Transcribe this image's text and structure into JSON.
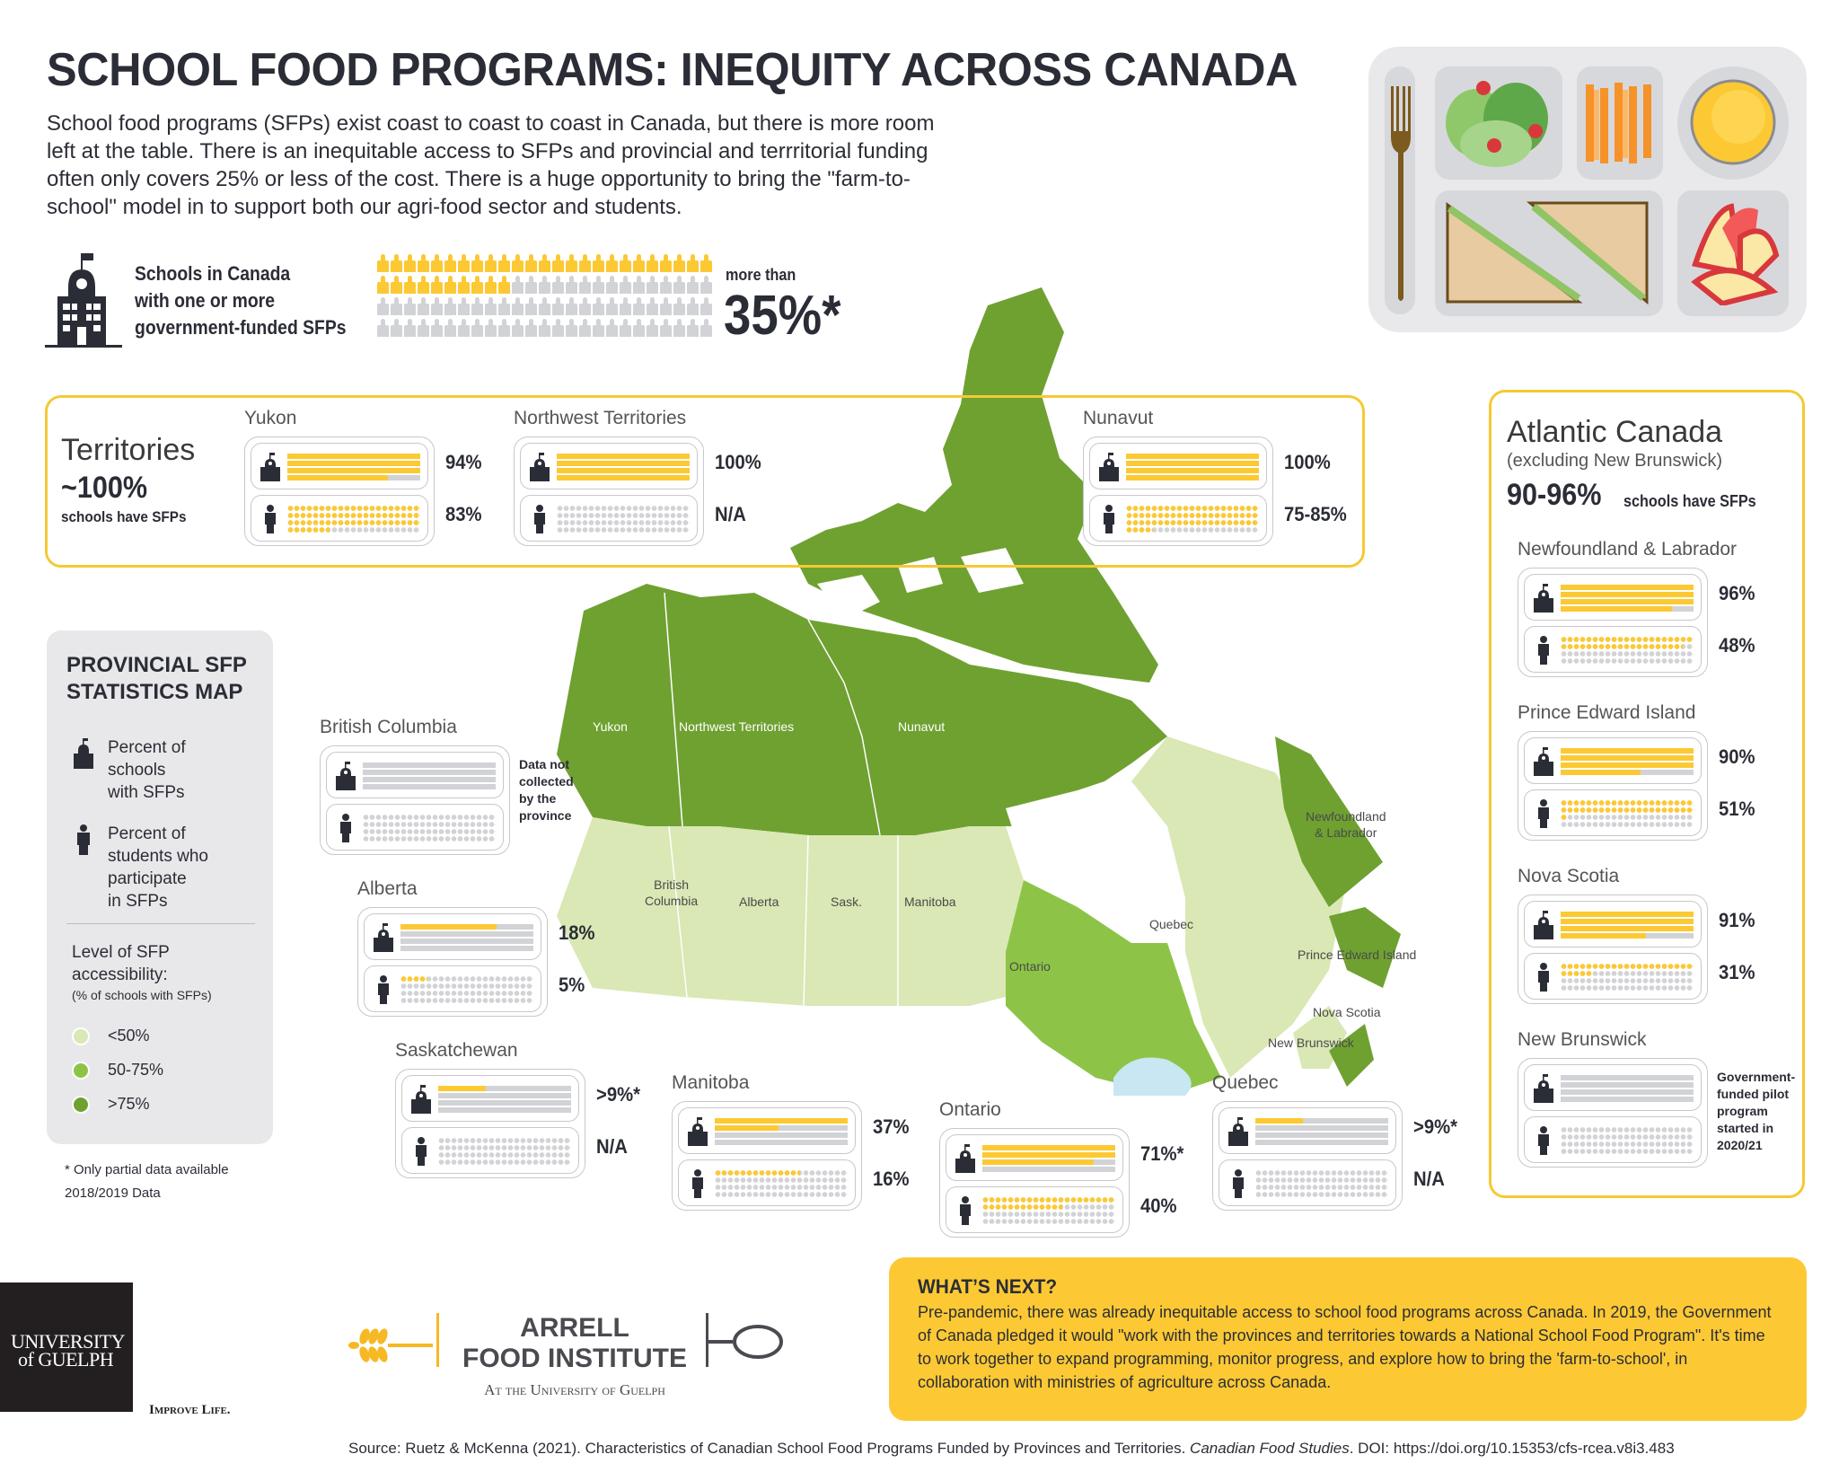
{
  "header": {
    "title": "SCHOOL FOOD PROGRAMS: INEQUITY ACROSS CANADA",
    "intro": "School food programs (SFPs) exist coast to coast to coast in Canada, but there is more room left at the table. There is an inequitable access to SFPs and provincial and terrritorial funding often only covers 25% or less of the cost. There is a huge opportunity to bring the \"farm-to-school\" model in to support both our agri-food sector and students."
  },
  "national_stat": {
    "label_lines": [
      "Schools in Canada",
      "with one or more",
      "government-funded SFPs"
    ],
    "icon_total": 100,
    "icon_filled": 35,
    "prefix": "more than",
    "value": "35%*"
  },
  "colors": {
    "accent_yellow": "#fcc934",
    "frame_yellow": "#f5c935",
    "empty_gray": "#d2d3d6",
    "text_dark": "#2b2d36",
    "green_low": "#d9e8b4",
    "green_mid": "#8dc447",
    "green_high": "#6fa131",
    "water": "#c9e6f3"
  },
  "territories": {
    "title": "Territories",
    "value": "~100%",
    "caption": "schools have SFPs",
    "regions": [
      {
        "name": "Yukon",
        "schools_pct": 94,
        "schools_label": "94%",
        "students_pct": 83,
        "students_label": "83%"
      },
      {
        "name": "Northwest Territories",
        "schools_pct": 100,
        "schools_label": "100%",
        "students_pct": 0,
        "students_label": "N/A"
      },
      {
        "name": "Nunavut",
        "schools_pct": 100,
        "schools_label": "100%",
        "students_pct": 80,
        "students_label": "75-85%"
      }
    ]
  },
  "atlantic": {
    "title": "Atlantic Canada",
    "subtitle": "(excluding New Brunswick)",
    "value": "90-96%",
    "caption": "schools have SFPs",
    "regions": [
      {
        "name": "Newfoundland & Labrador",
        "schools_pct": 96,
        "schools_label": "96%",
        "students_pct": 48,
        "students_label": "48%"
      },
      {
        "name": "Prince Edward Island",
        "schools_pct": 90,
        "schools_label": "90%",
        "students_pct": 51,
        "students_label": "51%"
      },
      {
        "name": "Nova Scotia",
        "schools_pct": 91,
        "schools_label": "91%",
        "students_pct": 31,
        "students_label": "31%"
      },
      {
        "name": "New Brunswick",
        "schools_pct": 0,
        "students_pct": 0,
        "note_lines": [
          "Government-",
          "funded pilot",
          "program",
          "started in",
          "2020/21"
        ]
      }
    ]
  },
  "provinces": [
    {
      "name": "British Columbia",
      "schools_pct": 0,
      "students_pct": 0,
      "note_lines": [
        "Data not",
        "collected",
        "by the",
        "province"
      ]
    },
    {
      "name": "Alberta",
      "schools_pct": 18,
      "schools_label": "18%",
      "students_pct": 5,
      "students_label": "5%"
    },
    {
      "name": "Saskatchewan",
      "schools_pct": 9,
      "schools_label": ">9%*",
      "students_pct": 0,
      "students_label": "N/A"
    },
    {
      "name": "Manitoba",
      "schools_pct": 37,
      "schools_label": "37%",
      "students_pct": 16,
      "students_label": "16%"
    },
    {
      "name": "Ontario",
      "schools_pct": 71,
      "schools_label": "71%*",
      "students_pct": 40,
      "students_label": "40%"
    },
    {
      "name": "Quebec",
      "schools_pct": 9,
      "schools_label": ">9%*",
      "students_pct": 0,
      "students_label": "N/A"
    }
  ],
  "legend": {
    "title_lines": [
      "PROVINCIAL SFP",
      "STATISTICS MAP"
    ],
    "schools_label_lines": [
      "Percent of",
      "schools",
      "with SFPs"
    ],
    "students_label_lines": [
      "Percent of",
      "students who",
      "participate",
      "in SFPs"
    ],
    "accessibility_title_lines": [
      "Level of SFP",
      "accessibility:"
    ],
    "accessibility_sub": "(% of schools with SFPs)",
    "levels": [
      {
        "label": "<50%",
        "color": "#d9e8b4"
      },
      {
        "label": "50-75%",
        "color": "#8dc447"
      },
      {
        "label": ">75%",
        "color": "#6fa131"
      }
    ]
  },
  "footnotes": {
    "partial": "* Only partial data available",
    "year": "2018/2019 Data"
  },
  "map_labels": {
    "yukon": "Yukon",
    "nwt": "Northwest Territories",
    "nunavut": "Nunavut",
    "bc": [
      "British",
      "Columbia"
    ],
    "alberta": "Alberta",
    "sask": "Sask.",
    "manitoba": "Manitoba",
    "ontario": "Ontario",
    "quebec": "Quebec",
    "nl": [
      "Newfoundland",
      "& Labrador"
    ],
    "pei": "Prince Edward Island",
    "ns": "Nova Scotia",
    "nb": "New Brunswick"
  },
  "whats_next": {
    "title": "WHAT’S NEXT?",
    "body": "Pre-pandemic, there was already inequitable access to school food programs across Canada. In 2019, the Government of Canada pledged it would \"work with the provinces and territories towards a National School Food Program\". It's time to work together to expand programming, monitor progress, and explore how to bring the 'farm-to-school', in collaboration with ministries of agriculture across Canada."
  },
  "logos": {
    "guelph_line1": "UNIVERSITY",
    "guelph_line2": "of GUELPH",
    "guelph_tagline": "Improve Life.",
    "arrell_line1": "ARRELL",
    "arrell_line2": "FOOD INSTITUTE",
    "arrell_sub": "At the University of Guelph"
  },
  "source": {
    "prefix": "Source: Ruetz & McKenna (2021). Characteristics of Canadian School Food Programs Funded by Provinces and Territories. ",
    "journal": "Canadian Food Studies",
    "suffix": ". DOI: https://doi.org/10.15353/cfs-rcea.v8i3.483"
  }
}
